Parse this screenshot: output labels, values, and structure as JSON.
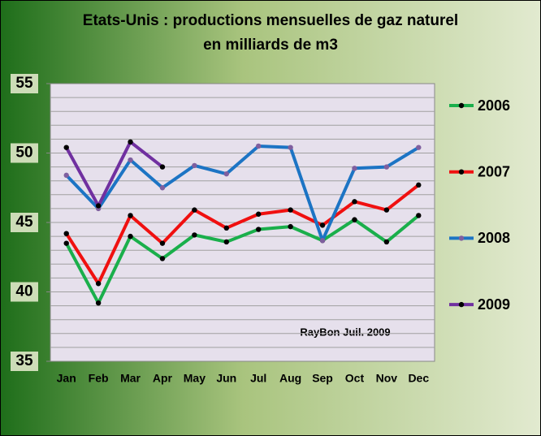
{
  "chart_data": {
    "type": "line",
    "title": "Etats-Unis : productions mensuelles de gaz naturel",
    "subtitle": "en milliards de m3",
    "annotation": "RayBon Juil. 2009",
    "categories": [
      "Jan",
      "Feb",
      "Mar",
      "Apr",
      "May",
      "Jun",
      "Jul",
      "Aug",
      "Sep",
      "Oct",
      "Nov",
      "Dec"
    ],
    "series": [
      {
        "name": "2006",
        "color": "#1aaf4b",
        "marker_color": "#000000",
        "values": [
          43.5,
          39.2,
          44.0,
          42.4,
          44.1,
          43.6,
          44.5,
          44.7,
          43.7,
          45.2,
          43.6,
          45.5
        ]
      },
      {
        "name": "2007",
        "color": "#f01010",
        "marker_color": "#000000",
        "values": [
          44.2,
          40.6,
          45.5,
          43.5,
          45.9,
          44.6,
          45.6,
          45.9,
          44.8,
          46.5,
          45.9,
          47.7
        ]
      },
      {
        "name": "2008",
        "color": "#1c74c4",
        "marker_color": "#7f5f9f",
        "values": [
          48.4,
          46.0,
          49.5,
          47.5,
          49.1,
          48.5,
          50.5,
          50.4,
          43.7,
          48.9,
          49.0,
          50.4
        ]
      },
      {
        "name": "2009",
        "color": "#7030a0",
        "marker_color": "#000000",
        "values": [
          50.4,
          46.2,
          50.8,
          49.0,
          null,
          null,
          null,
          null,
          null,
          null,
          null,
          null
        ]
      }
    ],
    "ylim": [
      35,
      55
    ],
    "yticks": [
      35,
      40,
      45,
      50,
      55
    ],
    "ygrid": [
      36,
      37,
      38,
      39,
      40,
      41,
      42,
      43,
      44,
      45,
      46,
      47,
      48,
      49,
      50,
      51,
      52,
      53,
      54
    ],
    "grid": true,
    "legend": "right"
  }
}
